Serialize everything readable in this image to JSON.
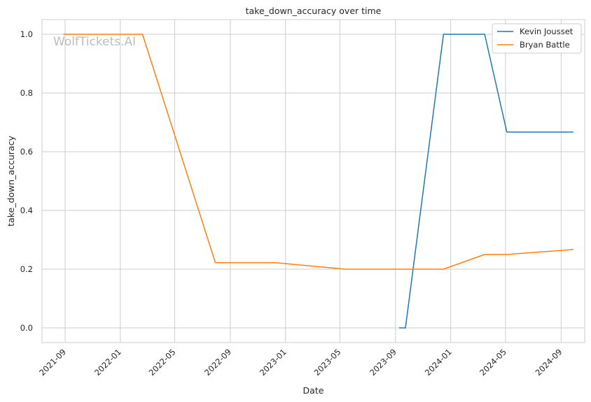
{
  "chart_data": {
    "type": "line",
    "title": "take_down_accuracy over time",
    "xlabel": "Date",
    "ylabel": "take_down_accuracy",
    "watermark": "WolfTickets.AI",
    "x_ticks": [
      "2021-09",
      "2022-01",
      "2022-05",
      "2022-09",
      "2023-01",
      "2023-05",
      "2023-09",
      "2024-01",
      "2024-05",
      "2024-09"
    ],
    "y_ticks": [
      "0.0",
      "0.2",
      "0.4",
      "0.6",
      "0.8",
      "1.0"
    ],
    "xlim": [
      "2021-07-12",
      "2024-10-23"
    ],
    "ylim": [
      -0.05,
      1.05
    ],
    "grid": true,
    "legend_position": "top-right",
    "series": [
      {
        "name": "Kevin Jousset",
        "color": "#1f77b4",
        "points": [
          {
            "x": "2023-09-09",
            "y": 0.0
          },
          {
            "x": "2023-09-23",
            "y": 0.0
          },
          {
            "x": "2023-12-16",
            "y": 1.0
          },
          {
            "x": "2024-03-16",
            "y": 1.0
          },
          {
            "x": "2024-05-04",
            "y": 0.667
          },
          {
            "x": "2024-09-28",
            "y": 0.667
          }
        ]
      },
      {
        "name": "Bryan Battle",
        "color": "#ff7f0e",
        "points": [
          {
            "x": "2021-08-28",
            "y": 1.0
          },
          {
            "x": "2022-02-19",
            "y": 1.0
          },
          {
            "x": "2022-07-30",
            "y": 0.222
          },
          {
            "x": "2022-12-10",
            "y": 0.222
          },
          {
            "x": "2023-05-13",
            "y": 0.2
          },
          {
            "x": "2023-12-16",
            "y": 0.2
          },
          {
            "x": "2024-03-16",
            "y": 0.25
          },
          {
            "x": "2024-05-04",
            "y": 0.25
          },
          {
            "x": "2024-09-28",
            "y": 0.267
          }
        ]
      }
    ]
  }
}
